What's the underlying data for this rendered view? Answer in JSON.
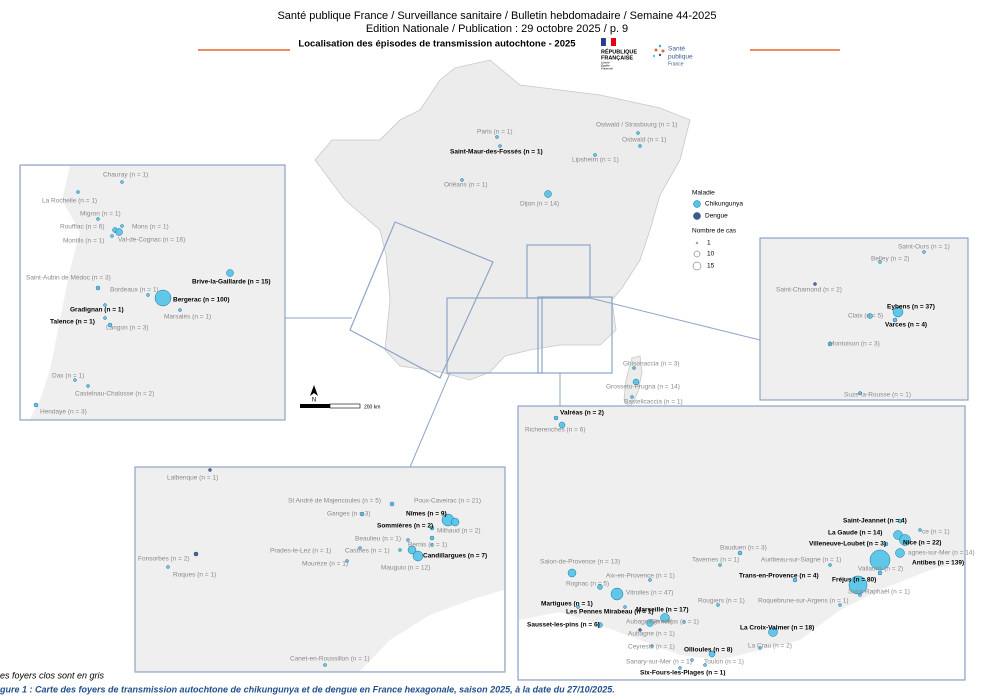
{
  "header": {
    "line1": "Santé publique France / Surveillance sanitaire / Bulletin hebdomadaire / Semaine 44-2025",
    "line2": "Edition Nationale / Publication : 29 octobre 2025 / p. 9",
    "title": "Localisation des épisodes de transmission autochtone - 2025"
  },
  "logos": {
    "republique": [
      "RÉPUBLIQUE",
      "FRANÇAISE"
    ],
    "devise": [
      "Liberté",
      "Égalité",
      "Fraternité"
    ],
    "spf": [
      "Santé",
      "publique",
      "France"
    ]
  },
  "legend": {
    "title": "Maladie",
    "items": [
      "Chikungunya",
      "Dengue"
    ],
    "size_title": "Nombre de cas",
    "sizes": [
      "1",
      "10",
      "15"
    ]
  },
  "scale": {
    "north": "N",
    "distance": "200 km"
  },
  "main_map": {
    "labels": [
      "Paris (n = 1)",
      "Ostwald / Strasbourg (n = 1)",
      "Saint-Maur-des-Fossés (n = 1)",
      "Ostwald (n = 1)",
      "Lipsheim (n = 1)",
      "Orléans (n = 1)",
      "Dijon (n = 14)",
      "Ghisonaccia (n = 3)",
      "Grosseto-Prugna (n = 14)",
      "Bastelicaccia (n = 1)"
    ]
  },
  "insets": {
    "southwest": {
      "labels": [
        "Chauray (n = 1)",
        "La Rochelle (n = 1)",
        "Migron (n = 1)",
        "Rouffiac (n = 6)",
        "Mons (n = 1)",
        "Montils (n = 1)",
        "Val-de-Cognac (n = 16)",
        "Saint-Aubin de Médoc (n = 3)",
        "Brive-la-Gaillarde (n = 15)",
        "Bordeaux (n = 1)",
        "Bergerac (n = 100)",
        "Gradignan (n = 1)",
        "Marsalès (n = 1)",
        "Talence (n = 1)",
        "Langon (n = 3)",
        "Dax (n = 1)",
        "Castelnau-Chalosse (n = 2)",
        "Hendaye (n = 3)"
      ]
    },
    "east": {
      "labels": [
        "Saint-Ours (n = 1)",
        "Belley (n = 2)",
        "Saint-Chamond (n = 2)",
        "Eybens (n = 37)",
        "Claix (n = 5)",
        "Varces (n = 4)",
        "Montoison (n = 3)",
        "Suze-la-Rousse (n = 1)"
      ]
    },
    "south": {
      "labels": [
        "Lalbenque (n = 1)",
        "St André de Majencoules (n = 5)",
        "Poux-Caveirac (n = 21)",
        "Ganges (n = 3)",
        "Nîmes (n = 9)",
        "Sommières (n = 2)",
        "Milhaud (n = 2)",
        "Beaulieu (n = 1)",
        "Bernis (n = 1)",
        "Fonsorbes (n = 2)",
        "Prades-le-Lez (n = 1)",
        "Castries (n = 1)",
        "Candillargues (n = 7)",
        "Mourèze (n = 1)",
        "Mauguio (n = 12)",
        "Roques (n = 1)",
        "Canet-en-Roussillon (n = 1)"
      ]
    },
    "southeast": {
      "labels": [
        "Valréas (n = 2)",
        "Richerenches (n = 6)",
        "Saint-Jeannet (n = 4)",
        "La Gaude (n = 14)",
        "ce (n = 1)",
        "Villeneuve-Loubet (n = 3)",
        "Nice (n = 22)",
        "Bauduen (n = 3)",
        "agnes-sur-Mer (n = 14)",
        "Tavernes (n = 1)",
        "Auribeau-sur-Siagne (n = 1)",
        "Antibes (n = 139)",
        "Salon-de-Provence (n = 13)",
        "Vallauris (n = 2)",
        "Aix-en-Provence (n = 1)",
        "Trans-en-Provence (n = 4)",
        "Fréjus (n = 80)",
        "Rognac (n = 5)",
        "Saint-Raphaël (n = 1)",
        "Vitrolles (n = 47)",
        "Rougiers (n = 1)",
        "Roquebrune-sur-Argens (n = 1)",
        "Martigues (n = 1)",
        "Les Pennes Mirabeau (n = 1)",
        "Marseille (n = 17)",
        "Aubagne (n = 9)",
        "Gémenos (n = 1)",
        "Sausset-les-pins (n = 6)",
        "Aubagne (n = 1)",
        "La Croix-Valmer (n = 18)",
        "Ceyreste (n = 1)",
        "La Crau (n = 2)",
        "Ollioules (n = 8)",
        "Sanary-sur-Mer (n = 1)",
        "Toulon (n = 1)",
        "Six-Fours-les-Plages (n = 1)"
      ]
    }
  },
  "footer": {
    "note": "es foyers clos sont en gris",
    "caption": "gure 1 : Carte des foyers de transmission autochtone de chikungunya et de dengue en France hexagonale, saison 2025, à la date du 27/10/2025."
  }
}
